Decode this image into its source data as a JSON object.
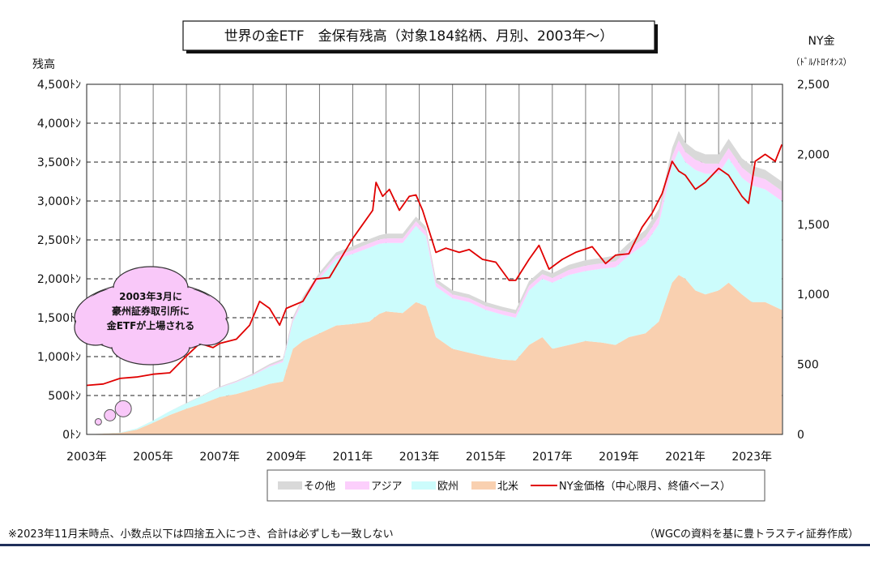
{
  "chart_data": {
    "type": "area",
    "title": "世界の金ETF　金保有残高（対象184銘柄、月別、2003年～）",
    "ylabel_left": "残高",
    "ylabel_right": "NY金",
    "ylabel_right_unit": "（ﾄﾞﾙ/ﾄﾛｲｵﾝｽ）",
    "ylim_left": [
      0,
      4500
    ],
    "ylim_right": [
      0,
      2500
    ],
    "yticks_left": [
      "0ﾄﾝ",
      "500ﾄﾝ",
      "1,000ﾄﾝ",
      "1,500ﾄﾝ",
      "2,000ﾄﾝ",
      "2,500ﾄﾝ",
      "3,000ﾄﾝ",
      "3,500ﾄﾝ",
      "4,000ﾄﾝ",
      "4,500ﾄﾝ"
    ],
    "yticks_right": [
      "0",
      "500",
      "1,000",
      "1,500",
      "2,000",
      "2,500"
    ],
    "xticks": [
      "2003年",
      "2005年",
      "2007年",
      "2009年",
      "2011年",
      "2013年",
      "2015年",
      "2017年",
      "2019年",
      "2021年",
      "2023年"
    ],
    "x": [
      2003.25,
      2004.0,
      2004.5,
      2005.0,
      2005.5,
      2006.0,
      2006.5,
      2007.0,
      2007.5,
      2008.0,
      2008.5,
      2008.9,
      2009.2,
      2009.5,
      2010.0,
      2010.5,
      2011.0,
      2011.5,
      2011.8,
      2012.0,
      2012.5,
      2012.9,
      2013.2,
      2013.5,
      2014.0,
      2014.5,
      2015.0,
      2015.5,
      2015.9,
      2016.3,
      2016.7,
      2017.0,
      2017.5,
      2018.0,
      2018.5,
      2018.9,
      2019.3,
      2019.8,
      2020.2,
      2020.6,
      2020.8,
      2021.0,
      2021.3,
      2021.6,
      2022.0,
      2022.3,
      2022.7,
      2023.0,
      2023.4,
      2023.9
    ],
    "series": [
      {
        "name": "北米",
        "color": "#f9d0b0",
        "values": [
          5,
          20,
          60,
          150,
          250,
          330,
          400,
          480,
          520,
          580,
          650,
          680,
          1100,
          1200,
          1300,
          1400,
          1420,
          1450,
          1550,
          1580,
          1560,
          1700,
          1650,
          1250,
          1100,
          1050,
          1000,
          960,
          950,
          1150,
          1250,
          1100,
          1150,
          1200,
          1180,
          1150,
          1250,
          1300,
          1450,
          1950,
          2050,
          2000,
          1850,
          1800,
          1850,
          1950,
          1800,
          1700,
          1700,
          1600
        ]
      },
      {
        "name": "欧州",
        "color": "#ccfcfc",
        "values": [
          0,
          5,
          15,
          30,
          50,
          70,
          100,
          120,
          150,
          180,
          220,
          250,
          350,
          500,
          700,
          850,
          900,
          950,
          900,
          880,
          900,
          980,
          900,
          650,
          650,
          650,
          600,
          580,
          550,
          700,
          750,
          850,
          900,
          900,
          950,
          1000,
          1050,
          1150,
          1250,
          1500,
          1600,
          1500,
          1550,
          1550,
          1500,
          1600,
          1500,
          1500,
          1450,
          1400
        ]
      },
      {
        "name": "アジア",
        "color": "#fccffc",
        "values": [
          0,
          0,
          0,
          0,
          0,
          0,
          0,
          5,
          10,
          10,
          15,
          20,
          30,
          35,
          40,
          45,
          50,
          55,
          55,
          60,
          60,
          60,
          60,
          50,
          50,
          50,
          50,
          50,
          50,
          60,
          60,
          60,
          65,
          70,
          70,
          75,
          80,
          90,
          100,
          120,
          130,
          130,
          130,
          130,
          130,
          130,
          130,
          130,
          130,
          130
        ]
      },
      {
        "name": "その他",
        "color": "#d9d9d9",
        "values": [
          0,
          0,
          0,
          0,
          0,
          5,
          5,
          10,
          10,
          15,
          20,
          25,
          30,
          35,
          40,
          45,
          50,
          55,
          55,
          60,
          60,
          60,
          60,
          50,
          50,
          50,
          50,
          50,
          50,
          60,
          60,
          60,
          65,
          70,
          70,
          75,
          80,
          90,
          100,
          110,
          120,
          120,
          120,
          120,
          120,
          120,
          120,
          120,
          120,
          120
        ]
      }
    ],
    "line_series": {
      "name": "NY金価格（中心限月、終値ベース）",
      "color": "#e00000",
      "axis": "right",
      "x": [
        2003.0,
        2003.5,
        2004.0,
        2004.5,
        2005.0,
        2005.5,
        2006.0,
        2006.4,
        2006.8,
        2007.0,
        2007.5,
        2007.9,
        2008.2,
        2008.5,
        2008.8,
        2009.0,
        2009.5,
        2009.9,
        2010.3,
        2010.7,
        2011.0,
        2011.3,
        2011.6,
        2011.7,
        2011.9,
        2012.1,
        2012.4,
        2012.7,
        2012.9,
        2013.1,
        2013.3,
        2013.5,
        2013.8,
        2014.2,
        2014.5,
        2014.9,
        2015.3,
        2015.7,
        2015.9,
        2016.3,
        2016.6,
        2016.9,
        2017.3,
        2017.7,
        2018.2,
        2018.6,
        2018.9,
        2019.3,
        2019.7,
        2020.0,
        2020.3,
        2020.6,
        2020.8,
        2021.0,
        2021.3,
        2021.6,
        2022.0,
        2022.3,
        2022.7,
        2022.9,
        2023.1,
        2023.4,
        2023.7,
        2023.9
      ],
      "values": [
        350,
        360,
        400,
        410,
        430,
        440,
        560,
        650,
        620,
        650,
        680,
        780,
        950,
        900,
        780,
        900,
        950,
        1110,
        1120,
        1280,
        1400,
        1500,
        1600,
        1800,
        1700,
        1750,
        1600,
        1700,
        1710,
        1600,
        1450,
        1300,
        1330,
        1300,
        1320,
        1250,
        1230,
        1100,
        1100,
        1250,
        1350,
        1180,
        1250,
        1300,
        1340,
        1220,
        1280,
        1290,
        1480,
        1580,
        1720,
        1950,
        1880,
        1850,
        1750,
        1800,
        1900,
        1850,
        1700,
        1650,
        1950,
        2000,
        1950,
        2070
      ]
    },
    "bubbles": [
      {
        "x": 2003.35,
        "r": 4
      },
      {
        "x": 2003.7,
        "r": 7
      },
      {
        "x": 2004.1,
        "r": 10
      }
    ],
    "callout": [
      "2003年3月に",
      "豪州証券取引所に",
      "金ETFが上場される"
    ],
    "legend": [
      "その他",
      "アジア",
      "欧州",
      "北米",
      "NY金価格（中心限月、終値ベース）"
    ],
    "legend_position": "bottom",
    "grid": "horizontal dashed, vertical solid"
  },
  "footnote": "※2023年11月末時点、小数点以下は四捨五入につき、合計は必ずしも一致しない",
  "source": "（WGCの資料を基に豊トラスティ証券作成）"
}
